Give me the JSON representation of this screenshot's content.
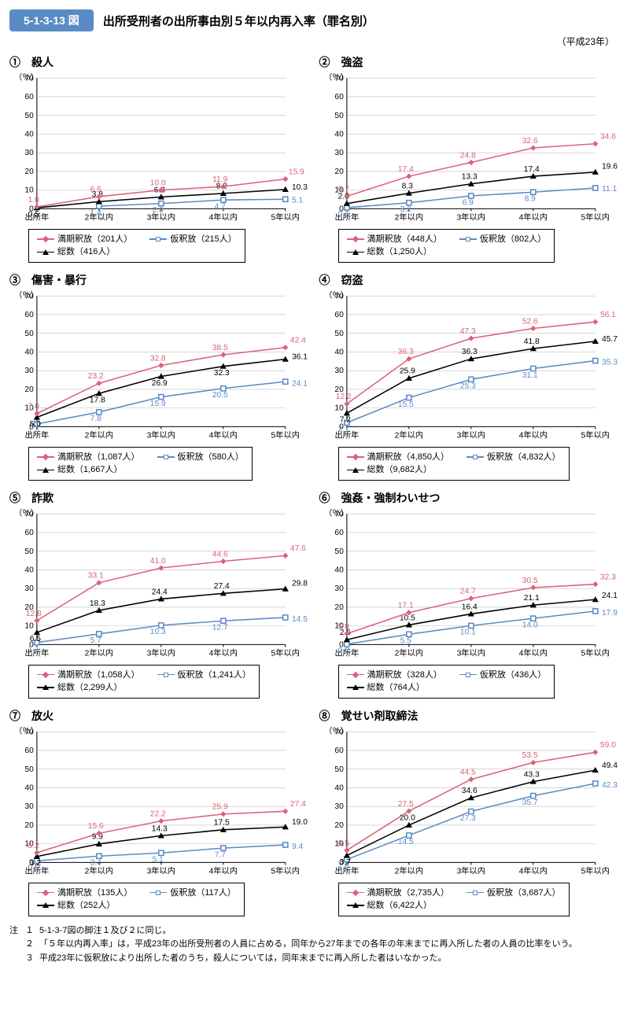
{
  "header": {
    "badge": "5-1-3-13 図",
    "title": "出所受刑者の出所事由別５年以内再入率（罪名別）",
    "year_note": "（平成23年）"
  },
  "axis": {
    "y_unit": "（％）",
    "x_label_origin": "出所年",
    "x_categories": [
      "出所年",
      "2年以内",
      "3年以内",
      "4年以内",
      "5年以内"
    ],
    "ylim": [
      0,
      70
    ],
    "ytick_step": 10,
    "tick_fontsize": 10,
    "label_color": "#000000",
    "grid_color": "#bdbdbd",
    "axis_color": "#000000"
  },
  "series_style": {
    "mankishaku": {
      "name": "満期釈放",
      "color": "#d9637a",
      "marker": "diamond",
      "line_width": 1.5
    },
    "karishaku": {
      "name": "仮釈放",
      "color": "#5b8bc4",
      "marker": "square-open",
      "line_width": 1.5
    },
    "total": {
      "name": "総数",
      "color": "#000000",
      "marker": "triangle",
      "line_width": 1.5
    }
  },
  "value_label_fontsize": 10,
  "panels": [
    {
      "num": "①",
      "title": "殺人",
      "legend": {
        "mankishaku": "満期釈放（201人）",
        "karishaku": "仮釈放（215人）",
        "total": "総数（416人）"
      },
      "series": {
        "mankishaku": [
          1.0,
          6.5,
          10.0,
          11.9,
          15.9
        ],
        "karishaku": [
          null,
          1.4,
          2.8,
          4.7,
          5.1
        ],
        "total": [
          0.5,
          3.8,
          6.3,
          8.2,
          10.3
        ]
      },
      "label_offsets": {
        "mankishaku": [
          [
            -4,
            -6
          ],
          [
            -4,
            -6
          ],
          [
            -4,
            -6
          ],
          [
            -4,
            -6
          ],
          [
            4,
            -6
          ]
        ],
        "karishaku": [
          [
            0,
            0
          ],
          [
            -4,
            11
          ],
          [
            -4,
            11
          ],
          [
            -4,
            11
          ],
          [
            8,
            4
          ]
        ],
        "total": [
          [
            -4,
            11
          ],
          [
            -2,
            -6
          ],
          [
            -2,
            -6
          ],
          [
            -2,
            -6
          ],
          [
            8,
            0
          ]
        ]
      }
    },
    {
      "num": "②",
      "title": "強盗",
      "legend": {
        "mankishaku": "満期釈放（448人）",
        "karishaku": "仮釈放（802人）",
        "total": "総数（1,250人）"
      },
      "series": {
        "mankishaku": [
          6.7,
          17.4,
          24.8,
          32.6,
          34.8
        ],
        "karishaku": [
          0.6,
          3.2,
          6.9,
          8.9,
          11.1
        ],
        "total": [
          2.8,
          8.3,
          13.3,
          17.4,
          19.6
        ]
      },
      "label_offsets": {
        "mankishaku": [
          [
            -4,
            -6
          ],
          [
            -4,
            -6
          ],
          [
            -4,
            -6
          ],
          [
            -4,
            -6
          ],
          [
            6,
            -6
          ]
        ],
        "karishaku": [
          [
            -4,
            11
          ],
          [
            -4,
            11
          ],
          [
            -4,
            11
          ],
          [
            -4,
            11
          ],
          [
            8,
            4
          ]
        ],
        "total": [
          [
            -4,
            -6
          ],
          [
            -2,
            -6
          ],
          [
            -2,
            -6
          ],
          [
            -2,
            -6
          ],
          [
            8,
            -4
          ]
        ]
      }
    },
    {
      "num": "③",
      "title": "傷害・暴行",
      "legend": {
        "mankishaku": "満期釈放（1,087人）",
        "karishaku": "仮釈放（580人）",
        "total": "総数（1,667人）"
      },
      "series": {
        "mankishaku": [
          7.0,
          23.2,
          32.8,
          38.5,
          42.4
        ],
        "karishaku": [
          1.4,
          7.8,
          15.9,
          20.5,
          24.1
        ],
        "total": [
          5.0,
          17.8,
          26.9,
          32.3,
          36.1
        ]
      },
      "label_offsets": {
        "mankishaku": [
          [
            -4,
            -6
          ],
          [
            -4,
            -6
          ],
          [
            -4,
            -6
          ],
          [
            -4,
            -6
          ],
          [
            6,
            -6
          ]
        ],
        "karishaku": [
          [
            -4,
            11
          ],
          [
            -4,
            11
          ],
          [
            -4,
            11
          ],
          [
            -4,
            11
          ],
          [
            8,
            5
          ]
        ],
        "total": [
          [
            -2,
            11
          ],
          [
            -2,
            11
          ],
          [
            -2,
            11
          ],
          [
            -2,
            11
          ],
          [
            8,
            0
          ]
        ]
      }
    },
    {
      "num": "④",
      "title": "窃盗",
      "legend": {
        "mankishaku": "満期釈放（4,850人）",
        "karishaku": "仮釈放（4,832人）",
        "total": "総数（9,682人）"
      },
      "series": {
        "mankishaku": [
          12.2,
          36.3,
          47.3,
          52.6,
          56.1
        ],
        "karishaku": [
          2.1,
          15.5,
          25.3,
          31.1,
          35.3
        ],
        "total": [
          7.2,
          25.9,
          36.3,
          41.8,
          45.7
        ]
      },
      "label_offsets": {
        "mankishaku": [
          [
            -4,
            -6
          ],
          [
            -4,
            -6
          ],
          [
            -4,
            -6
          ],
          [
            -4,
            -6
          ],
          [
            6,
            -6
          ]
        ],
        "karishaku": [
          [
            -4,
            11
          ],
          [
            -4,
            11
          ],
          [
            -4,
            11
          ],
          [
            -4,
            11
          ],
          [
            8,
            5
          ]
        ],
        "total": [
          [
            -2,
            11
          ],
          [
            -2,
            -6
          ],
          [
            -2,
            -6
          ],
          [
            -2,
            -6
          ],
          [
            8,
            0
          ]
        ]
      }
    },
    {
      "num": "⑤",
      "title": "詐欺",
      "legend": {
        "mankishaku": "満期釈放（1,058人）",
        "karishaku": "仮釈放（1,241人）",
        "total": "総数（2,299人）"
      },
      "series": {
        "mankishaku": [
          12.8,
          33.1,
          41.0,
          44.6,
          47.6
        ],
        "karishaku": [
          1.1,
          5.7,
          10.3,
          12.7,
          14.5
        ],
        "total": [
          6.5,
          18.3,
          24.4,
          27.4,
          29.8
        ]
      },
      "label_offsets": {
        "mankishaku": [
          [
            -4,
            -6
          ],
          [
            -4,
            -6
          ],
          [
            -4,
            -6
          ],
          [
            -4,
            -6
          ],
          [
            6,
            -6
          ]
        ],
        "karishaku": [
          [
            -4,
            11
          ],
          [
            -4,
            11
          ],
          [
            -4,
            11
          ],
          [
            -4,
            11
          ],
          [
            8,
            5
          ]
        ],
        "total": [
          [
            -2,
            11
          ],
          [
            -2,
            -6
          ],
          [
            -2,
            -6
          ],
          [
            -2,
            -6
          ],
          [
            8,
            -4
          ]
        ]
      }
    },
    {
      "num": "⑥",
      "title": "強姦・強制わいせつ",
      "legend": {
        "mankishaku": "満期釈放（328人）",
        "karishaku": "仮釈放（436人）",
        "total": "総数（764人）"
      },
      "series": {
        "mankishaku": [
          5.8,
          17.1,
          24.7,
          30.5,
          32.3
        ],
        "karishaku": [
          0.2,
          5.5,
          10.1,
          14.0,
          17.9
        ],
        "total": [
          2.6,
          10.5,
          16.4,
          21.1,
          24.1
        ]
      },
      "label_offsets": {
        "mankishaku": [
          [
            -4,
            -6
          ],
          [
            -4,
            -6
          ],
          [
            -4,
            -6
          ],
          [
            -4,
            -6
          ],
          [
            6,
            -6
          ]
        ],
        "karishaku": [
          [
            -4,
            11
          ],
          [
            -4,
            11
          ],
          [
            -4,
            11
          ],
          [
            -4,
            11
          ],
          [
            8,
            5
          ]
        ],
        "total": [
          [
            -2,
            -6
          ],
          [
            -2,
            -6
          ],
          [
            -2,
            -6
          ],
          [
            -2,
            -6
          ],
          [
            8,
            -2
          ]
        ]
      }
    },
    {
      "num": "⑦",
      "title": "放火",
      "legend": {
        "mankishaku": "満期釈放（135人）",
        "karishaku": "仮釈放（117人）",
        "total": "総数（252人）"
      },
      "series": {
        "mankishaku": [
          5.2,
          15.6,
          22.2,
          25.9,
          27.4
        ],
        "karishaku": [
          0.9,
          3.4,
          5.1,
          7.7,
          9.4
        ],
        "total": [
          3.2,
          9.9,
          14.3,
          17.5,
          19.0
        ]
      },
      "label_offsets": {
        "mankishaku": [
          [
            -4,
            -6
          ],
          [
            -4,
            -6
          ],
          [
            -4,
            -6
          ],
          [
            -4,
            -6
          ],
          [
            6,
            -6
          ]
        ],
        "karishaku": [
          [
            -4,
            11
          ],
          [
            -4,
            11
          ],
          [
            -4,
            11
          ],
          [
            -4,
            11
          ],
          [
            8,
            5
          ]
        ],
        "total": [
          [
            -2,
            11
          ],
          [
            -2,
            -6
          ],
          [
            -2,
            -6
          ],
          [
            -2,
            -6
          ],
          [
            8,
            -3
          ]
        ]
      }
    },
    {
      "num": "⑧",
      "title": "覚せい剤取締法",
      "legend": {
        "mankishaku": "満期釈放（2,735人）",
        "karishaku": "仮釈放（3,687人）",
        "total": "総数（6,422人）"
      },
      "series": {
        "mankishaku": [
          6.5,
          27.5,
          44.5,
          53.5,
          59.0
        ],
        "karishaku": [
          1.6,
          14.5,
          27.3,
          35.7,
          42.3
        ],
        "total": [
          3.7,
          20.0,
          34.6,
          43.3,
          49.4
        ]
      },
      "label_offsets": {
        "mankishaku": [
          [
            -4,
            -6
          ],
          [
            -4,
            -6
          ],
          [
            -4,
            -6
          ],
          [
            -4,
            -6
          ],
          [
            6,
            -6
          ]
        ],
        "karishaku": [
          [
            -4,
            11
          ],
          [
            -4,
            11
          ],
          [
            -4,
            11
          ],
          [
            -4,
            11
          ],
          [
            8,
            5
          ]
        ],
        "total": [
          [
            -2,
            11
          ],
          [
            -2,
            -6
          ],
          [
            -2,
            -6
          ],
          [
            -2,
            -6
          ],
          [
            8,
            -3
          ]
        ]
      }
    }
  ],
  "footnotes": {
    "label": "注",
    "items": [
      "5-1-3-7図の脚注１及び２に同じ。",
      "「５年以内再入率」は，平成23年の出所受刑者の人員に占める，同年から27年までの各年の年末までに再入所した者の人員の比率をいう。",
      "平成23年に仮釈放により出所した者のうち，殺人については，同年末までに再入所した者はいなかった。"
    ]
  }
}
